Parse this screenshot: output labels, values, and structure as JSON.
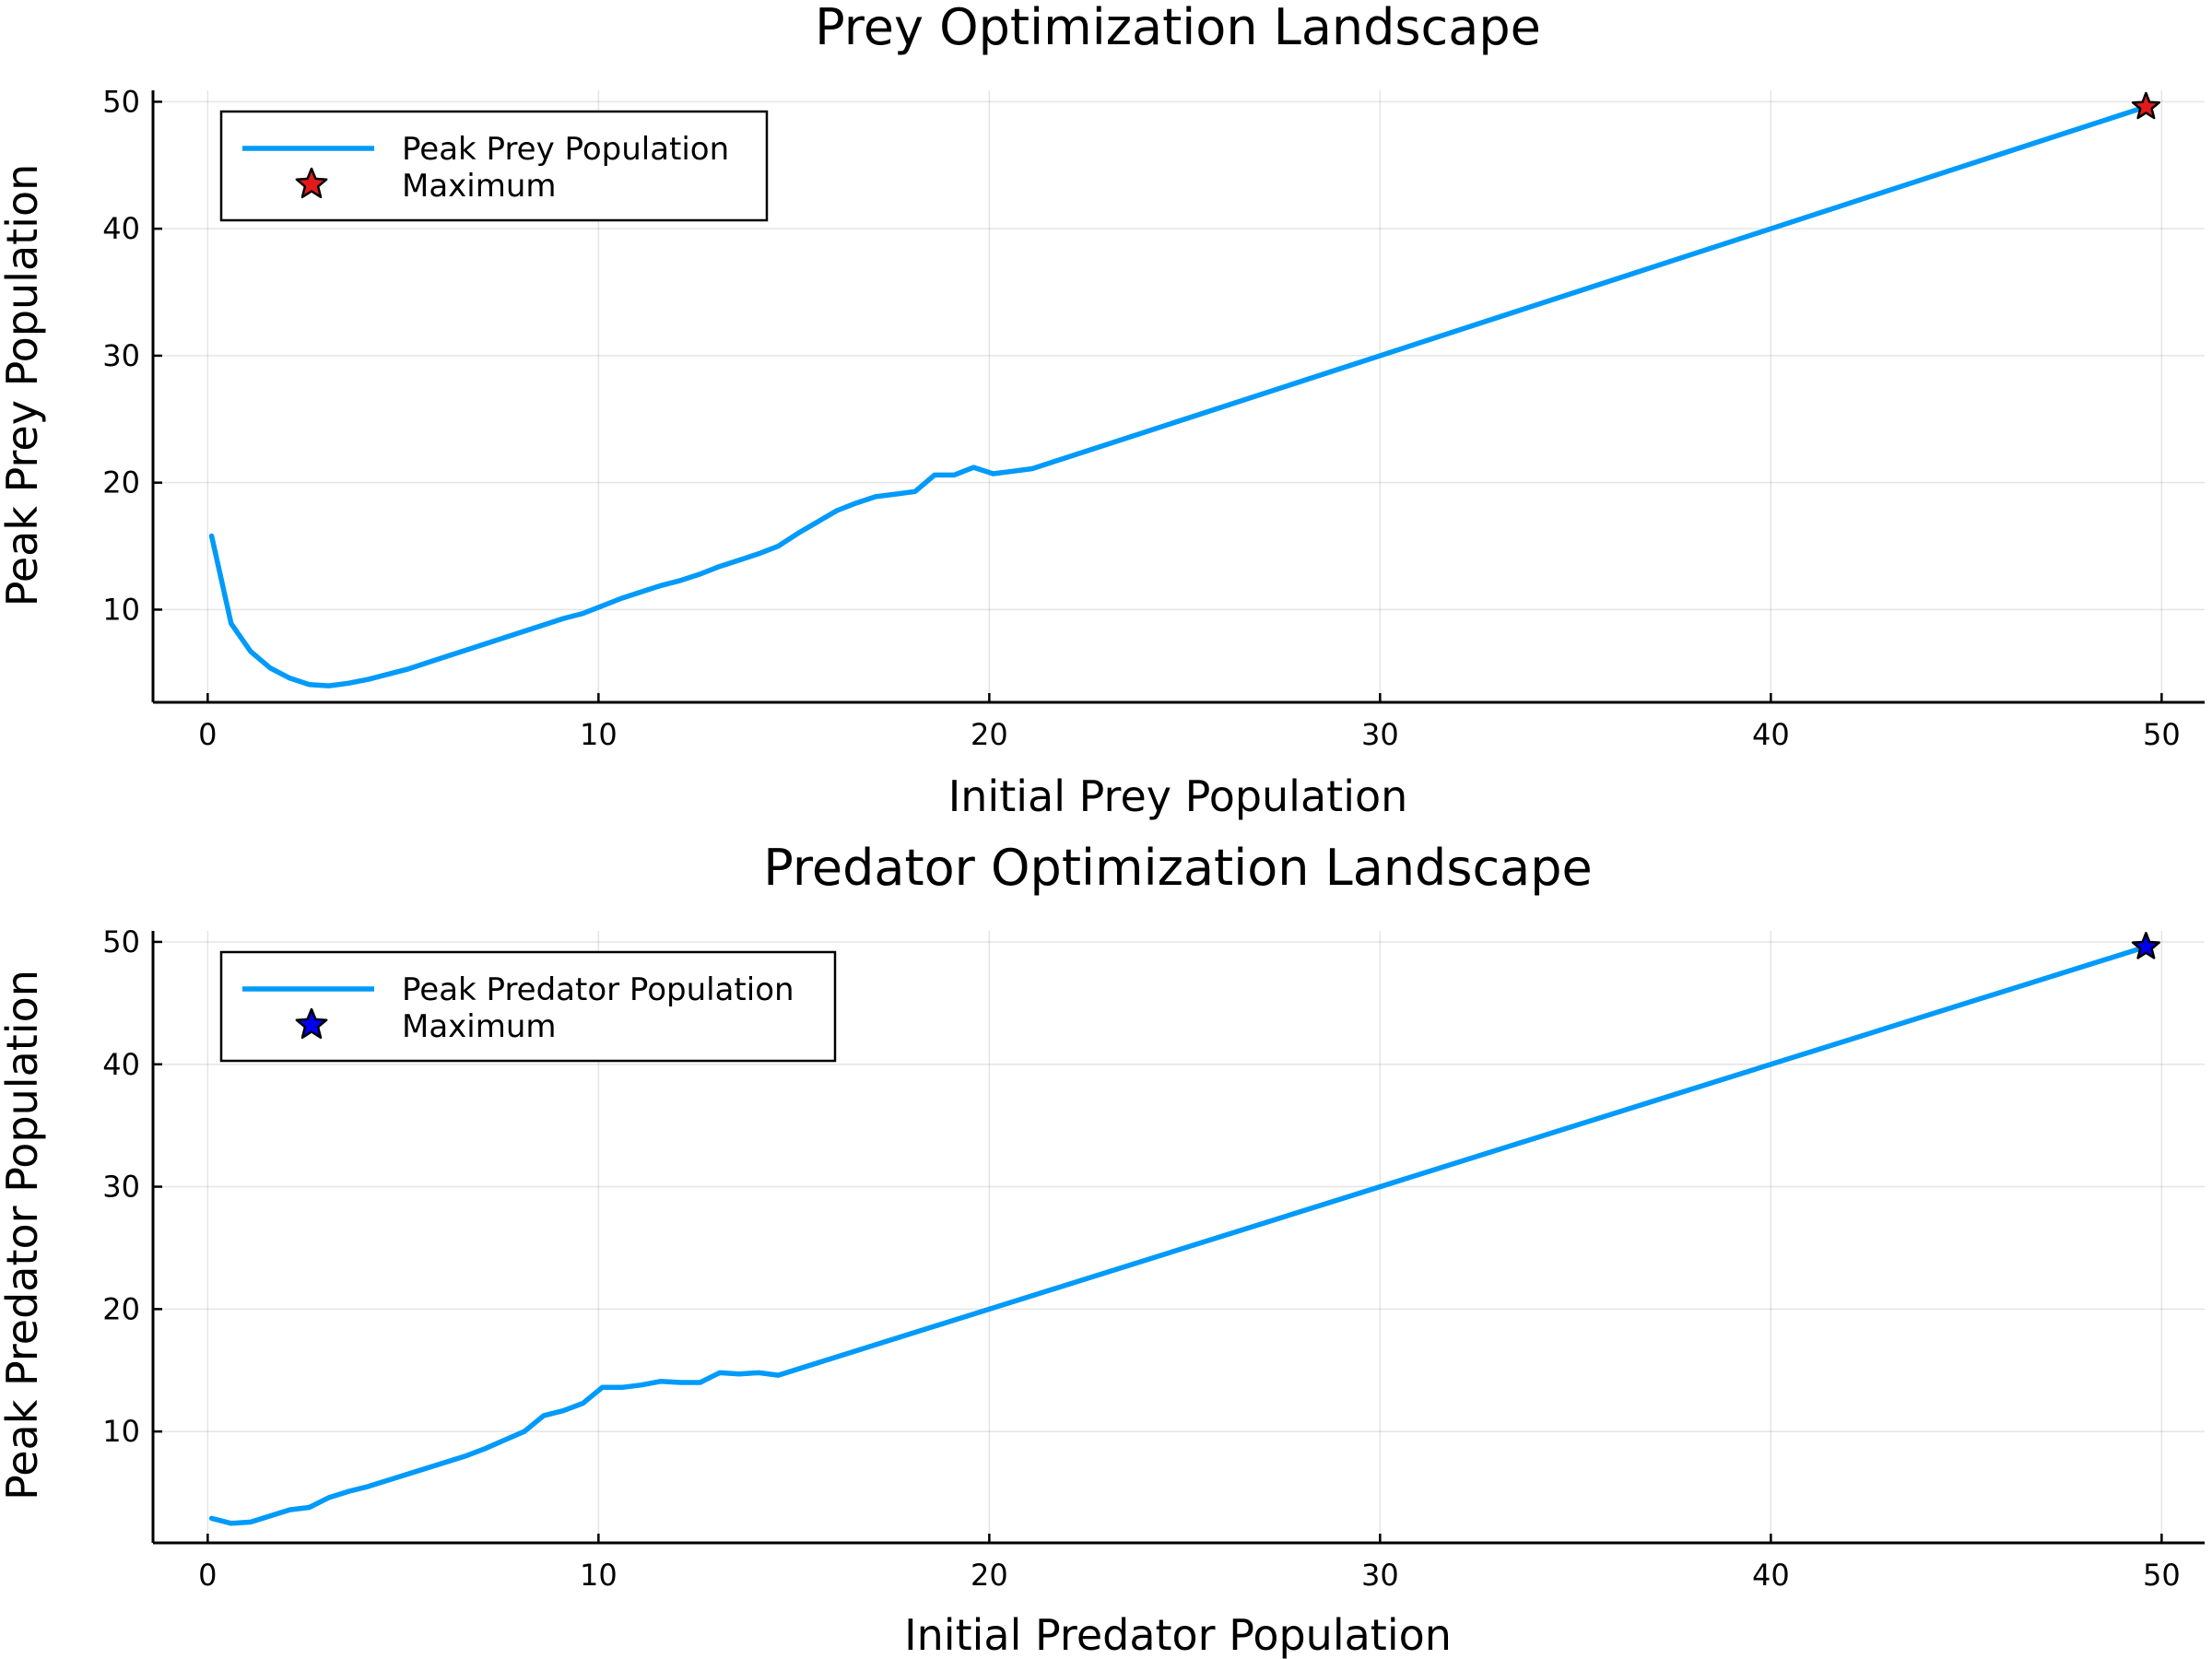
{
  "chart_data": [
    {
      "type": "line",
      "title": "Prey Optimization Landscape",
      "xlabel": "Initial Prey Population",
      "ylabel": "Peak Prey Population",
      "xlim": [
        -1.4,
        51.1
      ],
      "ylim": [
        2.7,
        50.9
      ],
      "xticks": [
        0,
        10,
        20,
        30,
        40,
        50
      ],
      "yticks": [
        10,
        20,
        30,
        40,
        50
      ],
      "grid": true,
      "legend": "top-left",
      "series": [
        {
          "name": "Peak Prey Population",
          "color": "#009AFA",
          "x": [
            0.1,
            0.6,
            1.1,
            1.6,
            2.1,
            2.6,
            3.1,
            3.6,
            4.1,
            4.6,
            5.1,
            5.6,
            6.1,
            6.6,
            7.1,
            7.6,
            8.1,
            8.6,
            9.1,
            9.6,
            10.1,
            10.6,
            11.1,
            11.6,
            12.1,
            12.6,
            13.1,
            13.6,
            14.1,
            14.6,
            15.1,
            15.6,
            16.1,
            16.6,
            17.1,
            17.6,
            18.1,
            18.6,
            19.1,
            19.6,
            20.1,
            20.6,
            21.1,
            21.6,
            22.1,
            22.6,
            49.6
          ],
          "y": [
            15.8,
            8.9,
            6.7,
            5.4,
            4.6,
            4.1,
            4.0,
            4.2,
            4.5,
            4.9,
            5.3,
            5.8,
            6.3,
            6.8,
            7.3,
            7.8,
            8.3,
            8.8,
            9.3,
            9.7,
            10.3,
            10.9,
            11.4,
            11.9,
            12.3,
            12.8,
            13.4,
            13.9,
            14.4,
            15.0,
            16.0,
            16.9,
            17.8,
            18.4,
            18.9,
            19.1,
            19.3,
            20.6,
            20.6,
            21.2,
            20.7,
            20.9,
            21.1,
            21.6,
            22.1,
            22.6,
            49.6
          ]
        },
        {
          "name": "Maximum",
          "type": "scatter",
          "marker": "star",
          "color": "#E31A1C",
          "x": [
            49.6
          ],
          "y": [
            49.6
          ]
        }
      ]
    },
    {
      "type": "line",
      "title": "Predator Optimization Landscape",
      "xlabel": "Initial Predator Population",
      "ylabel": "Peak Predator Population",
      "xlim": [
        -1.4,
        51.1
      ],
      "ylim": [
        0.9,
        50.9
      ],
      "xticks": [
        0,
        10,
        20,
        30,
        40,
        50
      ],
      "yticks": [
        10,
        20,
        30,
        40,
        50
      ],
      "grid": true,
      "legend": "top-left",
      "series": [
        {
          "name": "Peak Predator Population",
          "color": "#009AFA",
          "x": [
            0.1,
            0.6,
            1.1,
            1.6,
            2.1,
            2.6,
            3.1,
            3.6,
            4.1,
            4.6,
            5.1,
            5.6,
            6.1,
            6.6,
            7.1,
            7.6,
            8.1,
            8.6,
            9.1,
            9.6,
            10.1,
            10.6,
            11.1,
            11.6,
            12.1,
            12.6,
            13.1,
            13.6,
            14.1,
            14.6,
            49.6
          ],
          "y": [
            2.9,
            2.5,
            2.6,
            3.1,
            3.6,
            3.8,
            4.6,
            5.1,
            5.5,
            6.0,
            6.5,
            7.0,
            7.5,
            8.0,
            8.6,
            9.3,
            10.0,
            11.3,
            11.7,
            12.3,
            13.6,
            13.6,
            13.8,
            14.1,
            14.0,
            14.0,
            14.8,
            14.7,
            14.8,
            14.6,
            49.6
          ]
        },
        {
          "name": "Maximum",
          "type": "scatter",
          "marker": "star",
          "color": "#0000F0",
          "x": [
            49.6
          ],
          "y": [
            49.6
          ]
        }
      ]
    }
  ]
}
